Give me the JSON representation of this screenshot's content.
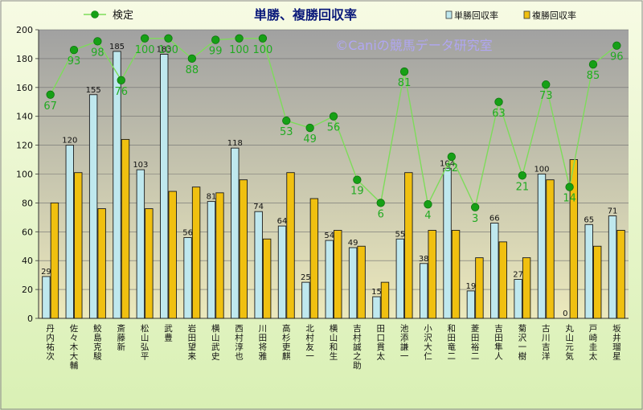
{
  "chart_data": {
    "type": "bar",
    "title": "単勝、複勝回収率",
    "watermark": "©Caniの競馬データ研究室",
    "ylim": [
      0,
      200
    ],
    "yticks": [
      0,
      20,
      40,
      60,
      80,
      100,
      120,
      140,
      160,
      180,
      200
    ],
    "legend": {
      "line_label": "検定",
      "bar1_label": "単勝回収率",
      "bar2_label": "複勝回収率"
    },
    "categories": [
      "丹内 祐次",
      "佐々木 大輔",
      "鮫島 克駿",
      "斎藤 新",
      "松山 弘平",
      "武 豊",
      "岩田 望来",
      "横山 武史",
      "西村 淳也",
      "川田 将雅",
      "高杉 吏麒",
      "北村 友一",
      "横山 和生",
      "吉村 誠之助",
      "田口 貫太",
      "池添 謙一",
      "小沢 大仁",
      "和田 竜二",
      "菱田 裕二",
      "吉田 隼人",
      "菊沢 一樹",
      "古川 吉洋",
      "丸山 元気",
      "戸崎 圭太",
      "坂井 瑠星"
    ],
    "category_labels": [
      "丹内 祐次",
      "佐々木 大輔",
      "鮫島 克駿",
      "斎藤 新",
      "松山 弘平",
      "武 豊",
      "岩田 望来",
      "横山 武史",
      "西村 淳也",
      "川田 将雅",
      "高杉 吏麒",
      "北村 友一",
      "横山 和生",
      "吉村 誠之助",
      "田口 貫太",
      "池添 謙一",
      "小沢 大仁",
      "和田 竜二",
      "菱田 裕二",
      "吉田 隼人",
      "菊沢 一樹",
      "古川 吉洋",
      "丸山 元気",
      "戸崎 圭太",
      "坂井 瑠星"
    ],
    "series": [
      {
        "name": "単勝回収率",
        "values": [
          29,
          120,
          155,
          185,
          103,
          183,
          56,
          81,
          118,
          74,
          64,
          25,
          54,
          49,
          15,
          55,
          38,
          104,
          19,
          66,
          27,
          100,
          0,
          65,
          71
        ]
      },
      {
        "name": "複勝回収率",
        "values": [
          80,
          101,
          76,
          124,
          76,
          88,
          91,
          87,
          96,
          55,
          101,
          83,
          61,
          50,
          25,
          101,
          61,
          61,
          42,
          53,
          42,
          96,
          110,
          50,
          61
        ]
      }
    ],
    "test_series": {
      "name": "検定",
      "labels": [
        67,
        93,
        98,
        76,
        100,
        100,
        88,
        99,
        100,
        100,
        53,
        49,
        56,
        19,
        6,
        81,
        4,
        32,
        3,
        63,
        21,
        73,
        14,
        85,
        96
      ],
      "positions": [
        155,
        186,
        192,
        165,
        194,
        194,
        180,
        193,
        194,
        194,
        137,
        132,
        140,
        96,
        80,
        171,
        79,
        112,
        77,
        150,
        99,
        162,
        91,
        176,
        189
      ]
    },
    "colors": {
      "bar1": "#bfe8ee",
      "bar2": "#f0c010",
      "line": "#7ddc5a",
      "marker": "#16a016",
      "label": "#22aa22",
      "title": "#0b1a7a",
      "watermark": "#b0a6f2"
    }
  }
}
